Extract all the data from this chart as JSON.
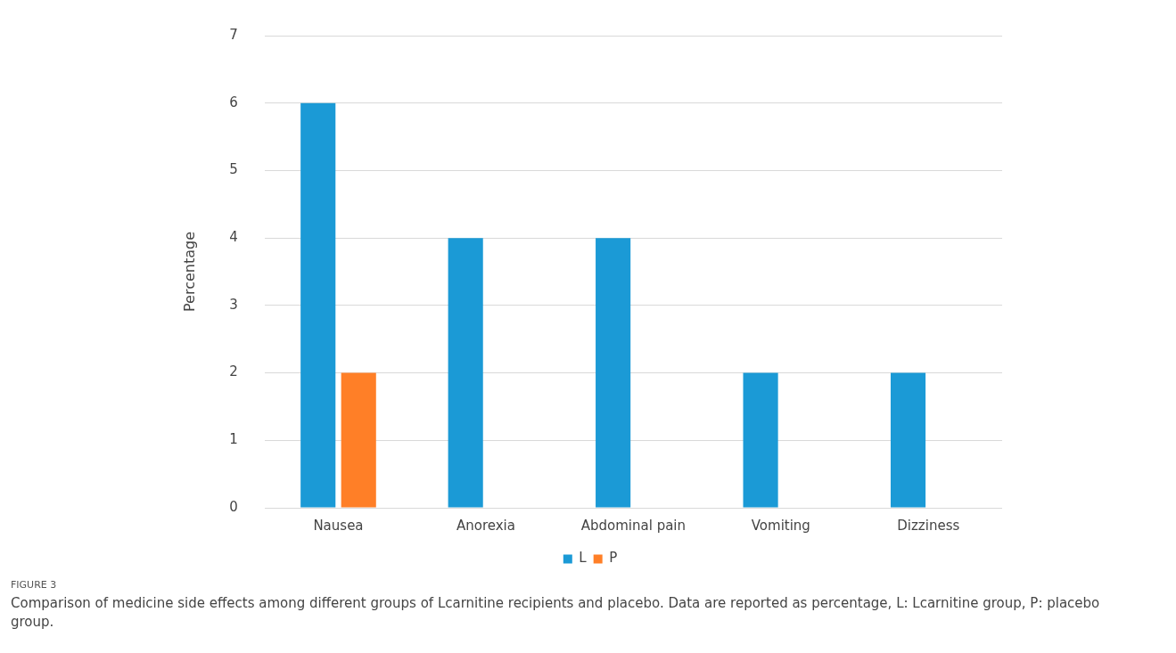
{
  "chart_data": {
    "type": "bar",
    "ylabel": "Percentage",
    "categories": [
      "Nausea",
      "Anorexia",
      "Abdominal pain",
      "Vomiting",
      "Dizziness"
    ],
    "series": [
      {
        "name": "L",
        "color": "#1b9ad6",
        "values": [
          6,
          4,
          4,
          2,
          2
        ]
      },
      {
        "name": "P",
        "color": "#ff7f27",
        "values": [
          2,
          0,
          0,
          0,
          0
        ]
      }
    ],
    "ylim": [
      0,
      7
    ],
    "yticks": [
      0,
      1,
      2,
      3,
      4,
      5,
      6,
      7
    ],
    "grid": "y",
    "legend": "bottom",
    "annotations": [
      "FIGURE 3",
      "Comparison of medicine side effects among different groups of Lcarnitine recipients and placebo. Data are reported as percentage, L: Lcarnitine group, P: placebo group."
    ]
  }
}
